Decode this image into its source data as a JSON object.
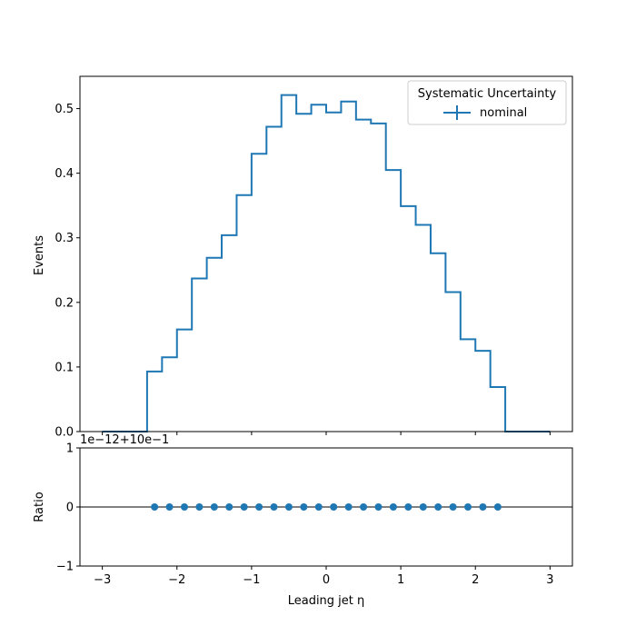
{
  "chart_data": [
    {
      "type": "histogram",
      "panel": "main",
      "ylabel": "Events",
      "xlim": [
        -3.3,
        3.3
      ],
      "ylim": [
        0,
        0.55
      ],
      "yticks": [
        0.0,
        0.1,
        0.2,
        0.3,
        0.4,
        0.5
      ],
      "ytick_labels": [
        "0.0",
        "0.1",
        "0.2",
        "0.3",
        "0.4",
        "0.5"
      ],
      "bin_edges": [
        -3.0,
        -2.8,
        -2.6,
        -2.4,
        -2.2,
        -2.0,
        -1.8,
        -1.6,
        -1.4,
        -1.2,
        -1.0,
        -0.8,
        -0.6,
        -0.4,
        -0.2,
        0.0,
        0.2,
        0.4,
        0.6,
        0.8,
        1.0,
        1.2,
        1.4,
        1.6,
        1.8,
        2.0,
        2.2,
        2.4,
        2.6,
        2.8,
        3.0
      ],
      "series": [
        {
          "name": "nominal",
          "color": "#1f77b4",
          "values": [
            0.0,
            0.0,
            0.0,
            0.093,
            0.115,
            0.158,
            0.237,
            0.269,
            0.304,
            0.366,
            0.43,
            0.472,
            0.521,
            0.492,
            0.506,
            0.494,
            0.511,
            0.483,
            0.477,
            0.405,
            0.349,
            0.32,
            0.276,
            0.216,
            0.143,
            0.125,
            0.069,
            0.0,
            0.0,
            0.0
          ]
        }
      ],
      "legend": {
        "title": "Systematic Uncertainty",
        "placement": "top-right",
        "entries": [
          "nominal"
        ]
      },
      "grid": false
    },
    {
      "type": "scatter",
      "panel": "ratio",
      "xlabel": "Leading jet  η",
      "ylabel": "Ratio",
      "offset_text": "1e−12+10e−1",
      "xlim": [
        -3.3,
        3.3
      ],
      "ylim": [
        -1,
        1
      ],
      "xticks": [
        -3,
        -2,
        -1,
        0,
        1,
        2,
        3
      ],
      "xtick_labels": [
        "−3",
        "−2",
        "−1",
        "0",
        "1",
        "2",
        "3"
      ],
      "yticks": [
        -1,
        0,
        1
      ],
      "ytick_labels": [
        "−1",
        "0",
        "1"
      ],
      "reference_line": 0,
      "series": [
        {
          "name": "nominal",
          "color": "#1f77b4",
          "x": [
            -2.3,
            -2.1,
            -1.9,
            -1.7,
            -1.5,
            -1.3,
            -1.1,
            -0.9,
            -0.7,
            -0.5,
            -0.3,
            -0.1,
            0.1,
            0.3,
            0.5,
            0.7,
            0.9,
            1.1,
            1.3,
            1.5,
            1.7,
            1.9,
            2.1,
            2.3
          ],
          "y": [
            0,
            0,
            0,
            0,
            0,
            0,
            0,
            0,
            0,
            0,
            0,
            0,
            0,
            0,
            0,
            0,
            0,
            0,
            0,
            0,
            0,
            0,
            0,
            0
          ]
        }
      ],
      "grid": false
    }
  ]
}
